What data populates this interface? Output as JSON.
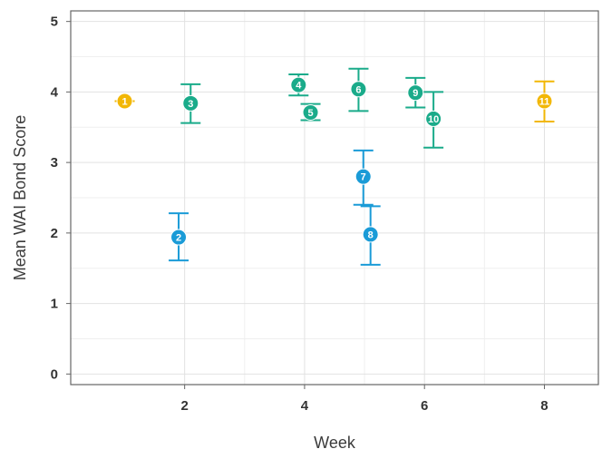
{
  "chart_data": {
    "type": "scatter",
    "title": "",
    "xlabel": "Week",
    "ylabel": "Mean WAI Bond Score",
    "xlim": [
      0.1,
      8.9
    ],
    "ylim": [
      -0.15,
      5.15
    ],
    "x_ticks": [
      2,
      4,
      6,
      8
    ],
    "x_tick_labels": [
      "2",
      "4",
      "6",
      "8"
    ],
    "y_ticks": [
      0,
      1,
      2,
      3,
      4,
      5
    ],
    "y_tick_labels": [
      "0",
      "1",
      "2",
      "3",
      "4",
      "5"
    ],
    "grid": true,
    "legend": "none",
    "colors": {
      "yellow": "#f2b705",
      "green": "#1aab8a",
      "blue": "#1a9bd7",
      "grid": "#e2e2e2",
      "border": "#666666"
    },
    "points": [
      {
        "label": "1",
        "x": 1.0,
        "y": 3.87,
        "lo": null,
        "hi": null,
        "color": "yellow"
      },
      {
        "label": "2",
        "x": 1.9,
        "y": 1.94,
        "lo": 1.61,
        "hi": 2.28,
        "color": "blue"
      },
      {
        "label": "3",
        "x": 2.1,
        "y": 3.84,
        "lo": 3.56,
        "hi": 4.11,
        "color": "green"
      },
      {
        "label": "4",
        "x": 3.9,
        "y": 4.1,
        "lo": 3.95,
        "hi": 4.25,
        "color": "green"
      },
      {
        "label": "5",
        "x": 4.1,
        "y": 3.71,
        "lo": 3.6,
        "hi": 3.83,
        "color": "green"
      },
      {
        "label": "6",
        "x": 4.9,
        "y": 4.04,
        "lo": 3.73,
        "hi": 4.33,
        "color": "green"
      },
      {
        "label": "7",
        "x": 4.98,
        "y": 2.8,
        "lo": 2.4,
        "hi": 3.17,
        "color": "blue"
      },
      {
        "label": "8",
        "x": 5.1,
        "y": 1.98,
        "lo": 1.55,
        "hi": 2.38,
        "color": "blue"
      },
      {
        "label": "9",
        "x": 5.85,
        "y": 3.99,
        "lo": 3.78,
        "hi": 4.2,
        "color": "green"
      },
      {
        "label": "10",
        "x": 6.15,
        "y": 3.62,
        "lo": 3.21,
        "hi": 4.0,
        "color": "green"
      },
      {
        "label": "11",
        "x": 8.0,
        "y": 3.87,
        "lo": 3.58,
        "hi": 4.15,
        "color": "yellow"
      }
    ]
  }
}
